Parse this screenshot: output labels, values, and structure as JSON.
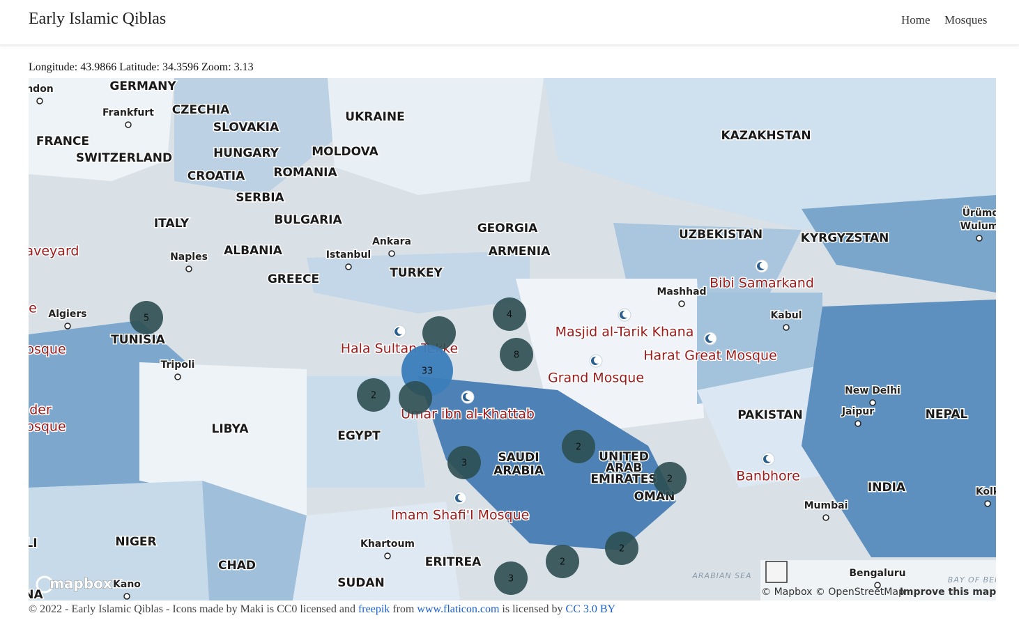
{
  "header": {
    "title": "Early Islamic Qiblas",
    "nav": [
      "Home",
      "Mosques"
    ]
  },
  "coordinates": "Longitude: 43.9866 Latitude: 34.3596 Zoom: 3.13",
  "map": {
    "countries": [
      "GERMANY",
      "CZECHIA",
      "SLOVAKIA",
      "UKRAINE",
      "FRANCE",
      "SWITZERLAND",
      "HUNGARY",
      "MOLDOVA",
      "ROMANIA",
      "CROATIA",
      "SERBIA",
      "BULGARIA",
      "ITALY",
      "ALBANIA",
      "GREECE",
      "GEORGIA",
      "ARMENIA",
      "TURKEY",
      "KAZAKHSTAN",
      "UZBEKISTAN",
      "KYRGYZSTAN",
      "TUNISIA",
      "LIBYA",
      "EGYPT",
      "SAUDI",
      "ARABIA",
      "UNITED",
      "ARAB",
      "EMIRATES",
      "OMAN",
      "PAKISTAN",
      "NEPAL",
      "INDIA",
      "NIGER",
      "CHAD",
      "SUDAN",
      "ERITREA",
      "LI",
      "NA"
    ],
    "cities": [
      "ndon",
      "Frankfurt",
      "Naples",
      "Istanbul",
      "Ankara",
      "Algiers",
      "Tripoli",
      "Mashhad",
      "Kabul",
      "New Delhi",
      "Jaipur",
      "Mumbai",
      "Khartoum",
      "Kano",
      "Bengaluru",
      "Ürümq",
      "Wulum",
      "Kolk"
    ],
    "mosques": [
      "Bibi Samarkand",
      "Masjid al-Tarik Khana",
      "Harat Great Mosque",
      "Hala Sultan Tekke",
      "Grand Mosque",
      "Umar ibn al-Khattab",
      "Banbhore",
      "Imam Shafi'I Mosque",
      "aveyard",
      "e",
      "osque",
      "der",
      "osque"
    ],
    "clusters": [
      5,
      4,
      null,
      33,
      8,
      2,
      null,
      2,
      3,
      2,
      2,
      2,
      3
    ],
    "seas": [
      "ARABIAN SEA",
      "BAY OF BEN"
    ],
    "logo": "mapbox",
    "attribution": "© Mapbox © OpenStreetMap",
    "improve": "Improve this map"
  },
  "footer": {
    "parts": [
      "© 2022 - Early Islamic Qiblas - Icons made by Maki is CC0 licensed and ",
      "freepik",
      " from ",
      "www.flaticon.com",
      " is licensed by ",
      "CC 3.0 BY"
    ]
  }
}
